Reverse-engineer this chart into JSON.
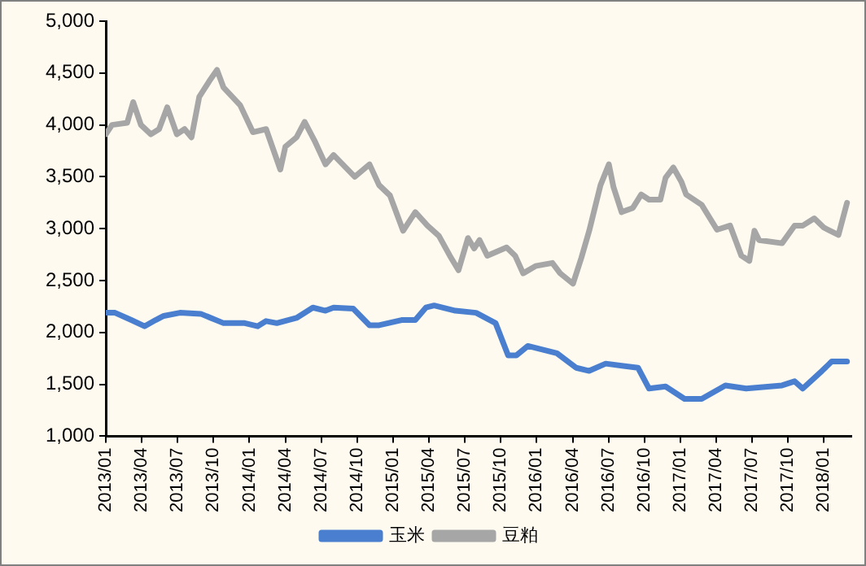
{
  "chart_data": {
    "type": "line",
    "legend": "bottom",
    "grid": false,
    "marker": "none",
    "line_style": "solid",
    "xlim": [
      "2013-01",
      "2018-03-10"
    ],
    "xticks": [
      {
        "value": "2013-01",
        "label": "2013/01"
      },
      {
        "value": "2013-04",
        "label": "2013/04"
      },
      {
        "value": "2013-07",
        "label": "2013/07"
      },
      {
        "value": "2013-10",
        "label": "2013/10"
      },
      {
        "value": "2014-01",
        "label": "2014/01"
      },
      {
        "value": "2014-04",
        "label": "2014/04"
      },
      {
        "value": "2014-07",
        "label": "2014/07"
      },
      {
        "value": "2014-10",
        "label": "2014/10"
      },
      {
        "value": "2015-01",
        "label": "2015/01"
      },
      {
        "value": "2015-04",
        "label": "2015/04"
      },
      {
        "value": "2015-07",
        "label": "2015/07"
      },
      {
        "value": "2015-10",
        "label": "2015/10"
      },
      {
        "value": "2016-01",
        "label": "2016/01"
      },
      {
        "value": "2016-04",
        "label": "2016/04"
      },
      {
        "value": "2016-07",
        "label": "2016/07"
      },
      {
        "value": "2016-10",
        "label": "2016/10"
      },
      {
        "value": "2017-01",
        "label": "2017/01"
      },
      {
        "value": "2017-04",
        "label": "2017/04"
      },
      {
        "value": "2017-07",
        "label": "2017/07"
      },
      {
        "value": "2017-10",
        "label": "2017/10"
      },
      {
        "value": "2018-01",
        "label": "2018/01"
      }
    ],
    "ylim": [
      1000,
      5000
    ],
    "yticks": [
      {
        "value": 1000,
        "label": "1,000"
      },
      {
        "value": 1500,
        "label": "1,500"
      },
      {
        "value": 2000,
        "label": "2,000"
      },
      {
        "value": 2500,
        "label": "2,500"
      },
      {
        "value": 3000,
        "label": "3,000"
      },
      {
        "value": 3500,
        "label": "3,500"
      },
      {
        "value": 4000,
        "label": "4,000"
      },
      {
        "value": 4500,
        "label": "4,500"
      },
      {
        "value": 5000,
        "label": "5,000"
      }
    ],
    "series": [
      {
        "name": "玉米",
        "color": "#4a7fd0",
        "x": [
          "2013-01-01",
          "2013-01-25",
          "2013-03-05",
          "2013-04-08",
          "2013-05-06",
          "2013-05-27",
          "2013-07-07",
          "2013-08-30",
          "2013-10-27",
          "2013-12-20",
          "2014-01-22",
          "2014-02-12",
          "2014-03-10",
          "2014-04-29",
          "2014-06-10",
          "2014-07-12",
          "2014-08-02",
          "2014-09-21",
          "2014-11-02",
          "2014-11-26",
          "2015-01-23",
          "2015-02-25",
          "2015-03-24",
          "2015-04-14",
          "2015-06-07",
          "2015-07-30",
          "2015-09-18",
          "2015-10-20",
          "2015-11-10",
          "2015-12-09",
          "2016-02-21",
          "2016-04-10",
          "2016-05-13",
          "2016-06-24",
          "2016-09-15",
          "2016-10-13",
          "2016-11-24",
          "2017-01-12",
          "2017-02-23",
          "2017-04-24",
          "2017-06-16",
          "2017-09-16",
          "2017-10-18",
          "2017-11-08",
          "2017-12-27",
          "2018-01-21",
          "2018-02-27"
        ],
        "values": [
          2190,
          2190,
          2120,
          2060,
          2120,
          2160,
          2190,
          2180,
          2090,
          2090,
          2060,
          2110,
          2090,
          2140,
          2240,
          2210,
          2240,
          2230,
          2070,
          2070,
          2120,
          2120,
          2240,
          2260,
          2210,
          2190,
          2090,
          1780,
          1780,
          1870,
          1800,
          1660,
          1630,
          1700,
          1660,
          1460,
          1480,
          1360,
          1360,
          1490,
          1460,
          1490,
          1530,
          1460,
          1630,
          1720,
          1720
        ]
      },
      {
        "name": "豆粕",
        "color": "#a6a6a6",
        "x": [
          "2013-01-01",
          "2013-01-17",
          "2013-02-23",
          "2013-03-10",
          "2013-03-30",
          "2013-04-24",
          "2013-05-15",
          "2013-06-05",
          "2013-06-29",
          "2013-07-19",
          "2013-08-06",
          "2013-08-26",
          "2013-09-20",
          "2013-10-10",
          "2013-10-27",
          "2013-12-08",
          "2014-01-10",
          "2014-02-12",
          "2014-03-19",
          "2014-04-01",
          "2014-04-29",
          "2014-05-20",
          "2014-06-14",
          "2014-07-12",
          "2014-08-02",
          "2014-09-25",
          "2014-11-02",
          "2014-11-26",
          "2014-12-24",
          "2015-01-27",
          "2015-02-25",
          "2015-03-28",
          "2015-04-26",
          "2015-05-24",
          "2015-06-15",
          "2015-07-09",
          "2015-07-25",
          "2015-08-08",
          "2015-08-28",
          "2015-10-16",
          "2015-11-07",
          "2015-11-27",
          "2015-12-29",
          "2016-02-10",
          "2016-02-29",
          "2016-04-02",
          "2016-04-23",
          "2016-05-13",
          "2016-06-11",
          "2016-07-02",
          "2016-07-14",
          "2016-08-04",
          "2016-09-02",
          "2016-09-23",
          "2016-10-13",
          "2016-11-11",
          "2016-11-24",
          "2016-12-14",
          "2017-01-04",
          "2017-01-16",
          "2017-02-23",
          "2017-04-03",
          "2017-05-06",
          "2017-06-04",
          "2017-06-24",
          "2017-07-07",
          "2017-07-19",
          "2017-09-16",
          "2017-10-18",
          "2017-11-08",
          "2017-12-07",
          "2018-01-01",
          "2018-02-07",
          "2018-02-27"
        ],
        "values": [
          3910,
          4000,
          4020,
          4220,
          4000,
          3910,
          3960,
          4170,
          3910,
          3960,
          3880,
          4270,
          4420,
          4530,
          4360,
          4190,
          3930,
          3960,
          3570,
          3790,
          3880,
          4030,
          3850,
          3620,
          3710,
          3500,
          3620,
          3420,
          3320,
          2980,
          3160,
          3030,
          2930,
          2740,
          2600,
          2910,
          2810,
          2890,
          2740,
          2820,
          2740,
          2570,
          2640,
          2670,
          2570,
          2470,
          2720,
          2980,
          3420,
          3620,
          3400,
          3160,
          3200,
          3330,
          3280,
          3280,
          3490,
          3590,
          3450,
          3330,
          3230,
          2990,
          3030,
          2740,
          2690,
          2980,
          2890,
          2860,
          3030,
          3030,
          3100,
          3010,
          2940,
          3250
        ]
      }
    ]
  }
}
